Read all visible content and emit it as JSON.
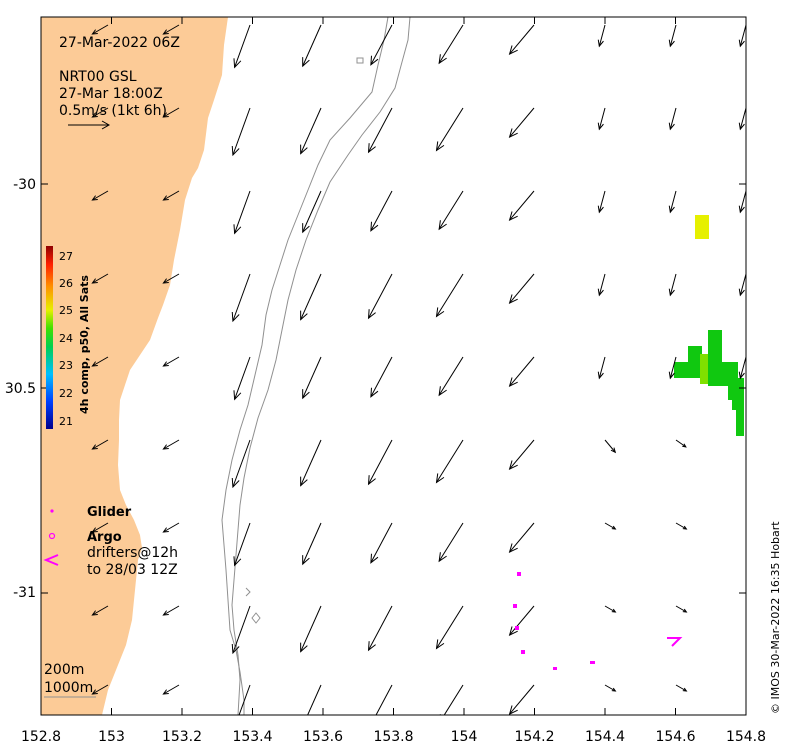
{
  "header": {
    "date": "27-Mar-2022 06Z",
    "product": "NRT00 GSL",
    "product_time": "27-Mar 18:00Z",
    "scale_label": "0.5m/s (1kt 6h)"
  },
  "axes": {
    "x_ticks": [
      "152.8",
      "153",
      "153.2",
      "153.4",
      "153.6",
      "153.8",
      "154",
      "154.2",
      "154.4",
      "154.6",
      "154.8"
    ],
    "y_ticks": [
      "-30",
      "30.5",
      "-31"
    ],
    "lon_range": [
      152.8,
      154.8
    ],
    "lat_range": [
      -29.58,
      -31.3
    ]
  },
  "colorbar": {
    "title": "4h comp, p50, All Sats",
    "ticks": [
      "27",
      "26",
      "25",
      "24",
      "23",
      "22",
      "21"
    ]
  },
  "legend": {
    "glider": "Glider",
    "argo": "Argo",
    "drifters_line1": "drifters@12h",
    "drifters_line2": "to 28/03 12Z"
  },
  "isobaths": {
    "line1": "200m",
    "line2": "1000m"
  },
  "credit": "© IMOS 30-Mar-2022 16:35 Hobart",
  "colors": {
    "land": "#fccb97",
    "sst_yellow": "#e6f000",
    "sst_green": "#10c810",
    "drifter": "#ff00ff"
  }
}
